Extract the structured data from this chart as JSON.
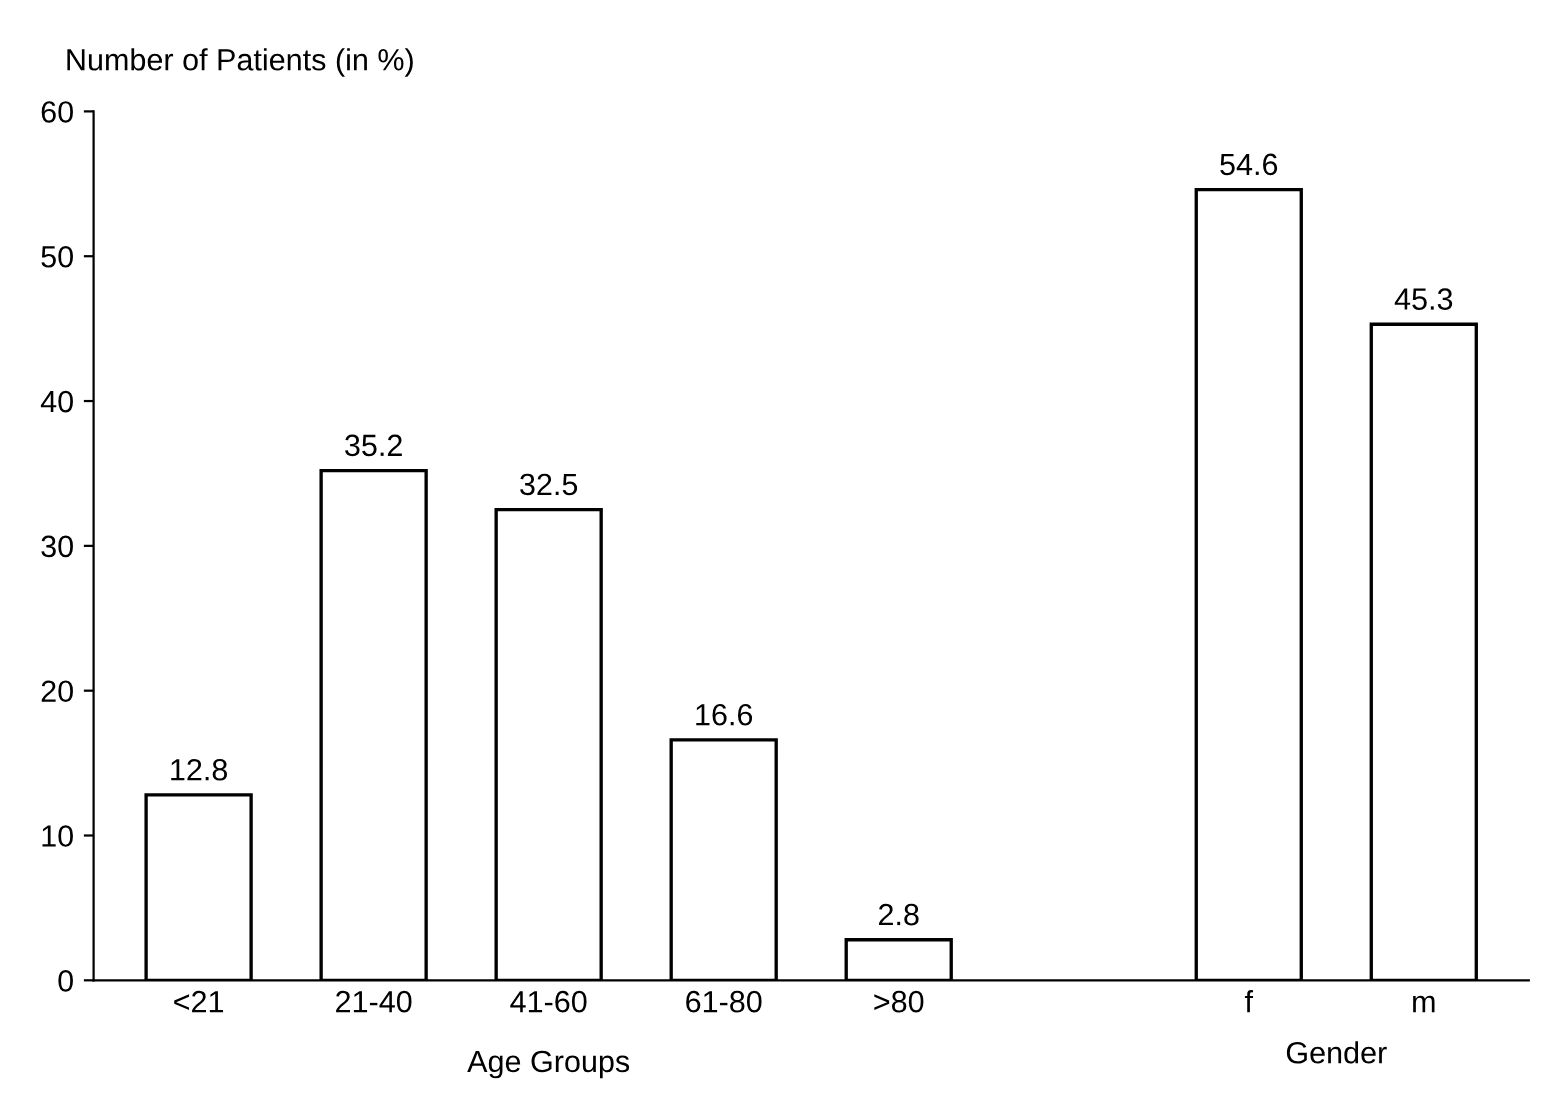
{
  "chart_data": {
    "type": "bar",
    "ylabel": "Number of Patients (in %)",
    "xlabel": "Age Groups",
    "annotations": [
      "Gender"
    ],
    "categories": [
      "<21",
      "21-40",
      "41-60",
      "61-80",
      ">80",
      null,
      "f",
      "m"
    ],
    "values": [
      12.8,
      35.2,
      32.5,
      16.6,
      2.8,
      null,
      54.6,
      45.3
    ],
    "value_labels": [
      "12.8",
      "35.2",
      "32.5",
      "16.6",
      "2.8",
      null,
      "54.6",
      "45.3"
    ],
    "color": "#ffffff",
    "ylim": [
      0,
      60
    ],
    "yticks": [
      0,
      10,
      20,
      30,
      40,
      50,
      60
    ],
    "grid": false,
    "legend": false
  }
}
